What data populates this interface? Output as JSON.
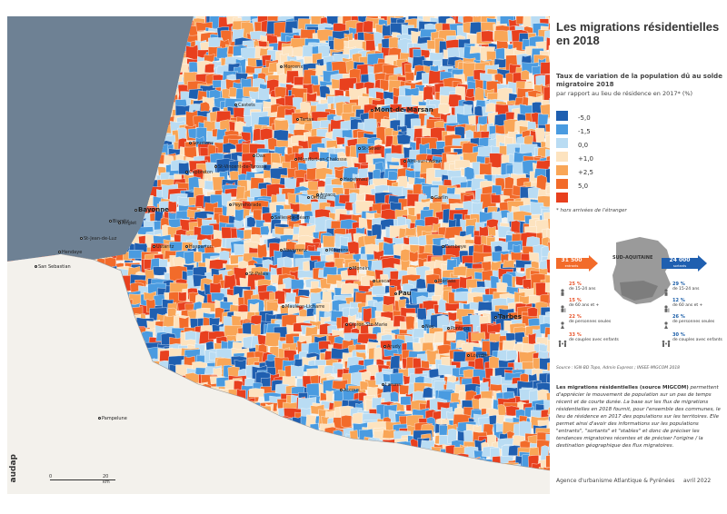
{
  "title": "Les migrations résidentielles en 2018",
  "legend": {
    "title": "Taux de variation de la population dû au solde migratoire 2018",
    "unit": "par rapport au lieu de résidence en 2017* (%)",
    "classes": [
      {
        "label": "-5,0",
        "color": "#1f5fb0"
      },
      {
        "label": "-1,5",
        "color": "#4a9be0"
      },
      {
        "label": "0,0",
        "color": "#b9dcf3"
      },
      {
        "label": "+1,0",
        "color": "#fde3bf"
      },
      {
        "label": "+2,5",
        "color": "#f9a657"
      },
      {
        "label": "5,0",
        "color": "#f26b2a"
      },
      {
        "label": "",
        "color": "#e8401e"
      }
    ],
    "note": "* hors arrivées de l'étranger"
  },
  "flows": {
    "incoming": {
      "value": "31 500",
      "sub": "entrants",
      "color": "#f26b2a"
    },
    "outgoing": {
      "value": "24 000",
      "sub": "sortants",
      "color": "#1f5fb0"
    },
    "region_label": "SUD-AQUITAINE",
    "incoming_stats": [
      {
        "pc": "25 %",
        "txt": "de 15-24 ans"
      },
      {
        "pc": "15 %",
        "txt": "de 60 ans et +"
      },
      {
        "pc": "22 %",
        "txt": "de personnes seules"
      },
      {
        "pc": "33 %",
        "txt": "de couples avec enfants"
      }
    ],
    "outgoing_stats": [
      {
        "pc": "29 %",
        "txt": "de 15-24 ans"
      },
      {
        "pc": "12 %",
        "txt": "de 60 ans et +"
      },
      {
        "pc": "26 %",
        "txt": "de personnes seules"
      },
      {
        "pc": "30 %",
        "txt": "de couples avec enfants"
      }
    ]
  },
  "source": "Source : IGN-BD Topo, Admin Express ; INSEE-MIGCOM 2018",
  "description_bold": "Les migrations résidentielles (source MIGCOM)",
  "description": " permettent d'apprécier le mouvement de population sur un pas de temps récent et de courte durée. La base sur les flux de migrations résidentielles en 2018 fournit, pour l'ensemble des communes, le lieu de résidence en 2017 des populations sur les territoires. Elle permet ainsi d'avoir des informations sur les populations \"entrants\", \"sortants\" et \"stables\" et donc de préciser les tendances migratoires récentes et de préciser l'origine / la destination géographique des flux migratoires.",
  "footer": {
    "agency": "Agence d'urbanisme Atlantique & Pyrénées",
    "date": "avril 2022"
  },
  "logo": "audap",
  "scale": {
    "start": "0",
    "end": "20 km"
  },
  "cities": [
    {
      "name": "Mont-de-Marsan",
      "big": true
    },
    {
      "name": "Morcenx"
    },
    {
      "name": "Castets"
    },
    {
      "name": "Tartas"
    },
    {
      "name": "Soustons"
    },
    {
      "name": "Dax"
    },
    {
      "name": "Capbreton"
    },
    {
      "name": "St-Vincent-de-Tyrosse"
    },
    {
      "name": "Montfort-en-Chalosse"
    },
    {
      "name": "St-Sever"
    },
    {
      "name": "Aire-sur-l'Adour"
    },
    {
      "name": "Hagetmau"
    },
    {
      "name": "Bayonne",
      "big": true
    },
    {
      "name": "Anglet"
    },
    {
      "name": "Biarritz"
    },
    {
      "name": "St-Jean-de-Luz"
    },
    {
      "name": "Hendaye"
    },
    {
      "name": "San Sebastian"
    },
    {
      "name": "Ustaritz"
    },
    {
      "name": "Hasparren"
    },
    {
      "name": "Peyrehorade"
    },
    {
      "name": "Salies-de-Béarn"
    },
    {
      "name": "Orthez"
    },
    {
      "name": "Arzacq"
    },
    {
      "name": "Pau",
      "big": true
    },
    {
      "name": "Lescar"
    },
    {
      "name": "Nay"
    },
    {
      "name": "Oloron-Ste-Marie"
    },
    {
      "name": "Mauléon-Licharre"
    },
    {
      "name": "St-Palais"
    },
    {
      "name": "Tarbes",
      "big": true
    },
    {
      "name": "Lourdes"
    },
    {
      "name": "Arudy"
    },
    {
      "name": "Accous"
    },
    {
      "name": "Laruns"
    },
    {
      "name": "Pampelune"
    },
    {
      "name": "Garlin"
    },
    {
      "name": "Lembeye"
    },
    {
      "name": "Navarrenx"
    },
    {
      "name": "Mourenx"
    },
    {
      "name": "Monein"
    },
    {
      "name": "Morlaàs"
    },
    {
      "name": "Pontacq"
    }
  ]
}
